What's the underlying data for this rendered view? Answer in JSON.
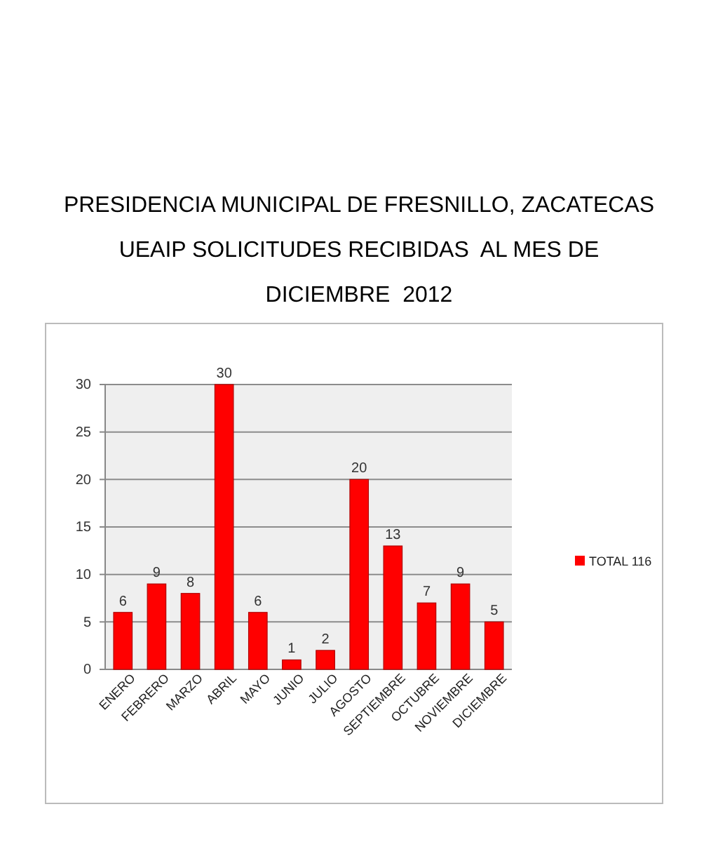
{
  "chart_data": {
    "type": "bar",
    "title": "PRESIDENCIA MUNICIPAL DE FRESNILLO, ZACATECAS",
    "subtitle": "UEAIP SOLICITUDES RECIBIDAS  AL MES DE\nDICIEMBRE  2012",
    "categories": [
      "ENERO",
      "FEBRERO",
      "MARZO",
      "ABRIL",
      "MAYO",
      "JUNIO",
      "JULIO",
      "AGOSTO",
      "SEPTIEMBRE",
      "OCTUBRE",
      "NOVIEMBRE",
      "DICIEMBRE"
    ],
    "series": [
      {
        "name": "TOTAL 116",
        "color": "#ff0000",
        "values": [
          6,
          9,
          8,
          30,
          6,
          1,
          2,
          20,
          13,
          7,
          9,
          5
        ]
      }
    ],
    "ylim": [
      0,
      30
    ],
    "yticks": [
      0,
      5,
      10,
      15,
      20,
      25,
      30
    ],
    "grid": "y",
    "legend": "right",
    "data_labels": true
  }
}
